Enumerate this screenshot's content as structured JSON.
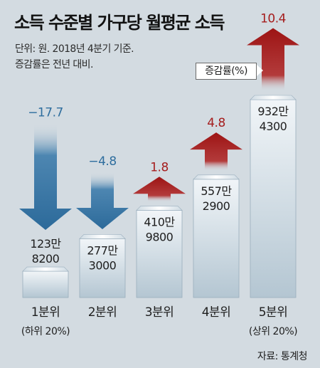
{
  "title": "소득 수준별 가구당 월평균 소득",
  "notes": [
    "단위: 원. 2018년 4분기 기준.",
    "증감률은 전년 대비."
  ],
  "legend_label": "증감률(%)",
  "source": "자료: 통계청",
  "colors": {
    "background": "#d3dbe1",
    "decrease": "#2f6e9e",
    "increase": "#a51d1d",
    "column_light": "#eef3f6",
    "column_dark": "#9cb1c0"
  },
  "chart_data": {
    "type": "bar",
    "categories": [
      "1분위",
      "2분위",
      "3분위",
      "4분위",
      "5분위"
    ],
    "sublabels": [
      "(하위 20%)",
      "",
      "",
      "",
      "(상위 20%)"
    ],
    "series": [
      {
        "values": [
          1238200,
          2773000,
          4109800,
          5572900,
          9324300
        ],
        "value_labels": [
          [
            "123만",
            "8200"
          ],
          [
            "277만",
            "3000"
          ],
          [
            "410만",
            "9800"
          ],
          [
            "557만",
            "2900"
          ],
          [
            "932만",
            "4300"
          ]
        ]
      },
      {
        "values": [
          -17.7,
          -4.8,
          1.8,
          4.8,
          10.4
        ],
        "labels": [
          "−17.7",
          "−4.8",
          "1.8",
          "4.8",
          "10.4"
        ]
      }
    ]
  }
}
